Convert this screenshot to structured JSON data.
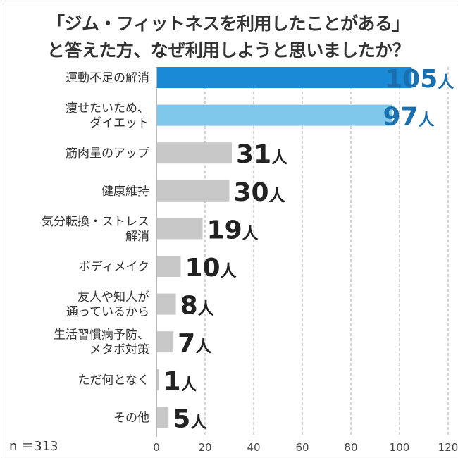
{
  "chart_data": {
    "type": "bar",
    "orientation": "horizontal",
    "title": "「ジム・フィットネスを利用したことがある」と答えた方、なぜ利用しようと思いましたか？",
    "title_lines": [
      "「ジム・フィットネスを利用したことがある」",
      "と答えた方、なぜ利用しようと思いましたか？"
    ],
    "categories": [
      [
        "運動不足の解消"
      ],
      [
        "痩せたいため、",
        "ダイエット"
      ],
      [
        "筋肉量のアップ"
      ],
      [
        "健康維持"
      ],
      [
        "気分転換・ストレス",
        "解消"
      ],
      [
        "ボディメイク"
      ],
      [
        "友人や知人が",
        "通っているから"
      ],
      [
        "生活習慣病予防、",
        "メタボ対策"
      ],
      [
        "ただ何となく"
      ],
      [
        "その他"
      ]
    ],
    "values": [
      105,
      97,
      31,
      30,
      19,
      10,
      8,
      7,
      1,
      5
    ],
    "value_suffix": "人",
    "bar_colors": [
      "#1a8ad6",
      "#7fc8ec",
      "#c8c8c8",
      "#c8c8c8",
      "#c8c8c8",
      "#c8c8c8",
      "#c8c8c8",
      "#c8c8c8",
      "#c8c8c8",
      "#c8c8c8"
    ],
    "label_colors": [
      "#1a6fae",
      "#1a6fae",
      "#222222",
      "#222222",
      "#222222",
      "#222222",
      "#222222",
      "#222222",
      "#222222",
      "#222222"
    ],
    "xlim": [
      0,
      120
    ],
    "xticks": [
      0,
      20,
      40,
      60,
      80,
      100,
      120
    ],
    "grid": true,
    "grid_style": "dashed",
    "xlabel": "",
    "ylabel": ""
  },
  "note": "n ＝313"
}
